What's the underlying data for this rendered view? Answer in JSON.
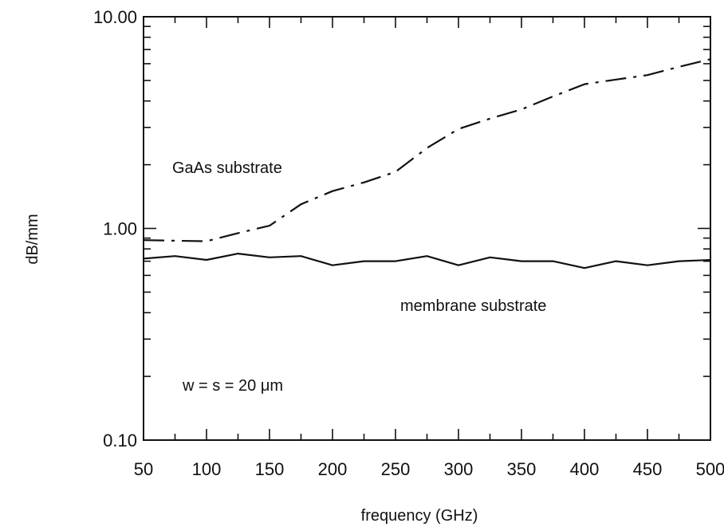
{
  "chart_data": {
    "type": "line",
    "xlabel": "frequency (GHz)",
    "ylabel": "dB/mm",
    "xlim": [
      50,
      500
    ],
    "ylim": [
      0.1,
      10
    ],
    "yscale": "log",
    "grid": false,
    "legend": "none",
    "x_ticks": [
      50,
      100,
      150,
      200,
      250,
      300,
      350,
      400,
      450,
      500
    ],
    "x_tick_labels": [
      "50",
      "100",
      "150",
      "200",
      "250",
      "300",
      "350",
      "400",
      "450",
      "500"
    ],
    "y_tick_labels": [
      {
        "value": 10,
        "text": "10.00"
      },
      {
        "value": 1,
        "text": "1.00"
      },
      {
        "value": 0.1,
        "text": "0.10"
      }
    ],
    "series": [
      {
        "label": "GaAs substrate",
        "line_style": "dash-dot",
        "x": [
          50,
          100,
          125,
          150,
          175,
          200,
          225,
          250,
          275,
          300,
          325,
          350,
          375,
          400,
          425,
          450,
          475,
          500
        ],
        "y": [
          0.88,
          0.87,
          0.95,
          1.03,
          1.3,
          1.5,
          1.65,
          1.85,
          2.4,
          2.95,
          3.3,
          3.65,
          4.2,
          4.8,
          5.05,
          5.3,
          5.8,
          6.3
        ]
      },
      {
        "label": "membrane substrate",
        "line_style": "solid",
        "x": [
          50,
          75,
          100,
          125,
          150,
          175,
          200,
          225,
          250,
          275,
          300,
          325,
          350,
          375,
          400,
          425,
          450,
          475,
          500
        ],
        "y": [
          0.72,
          0.74,
          0.71,
          0.76,
          0.73,
          0.74,
          0.67,
          0.7,
          0.7,
          0.74,
          0.67,
          0.73,
          0.7,
          0.7,
          0.65,
          0.7,
          0.67,
          0.7,
          0.71
        ]
      }
    ],
    "annotations": [
      "GaAs substrate",
      "membrane substrate",
      "w = s = 20 μm"
    ]
  }
}
